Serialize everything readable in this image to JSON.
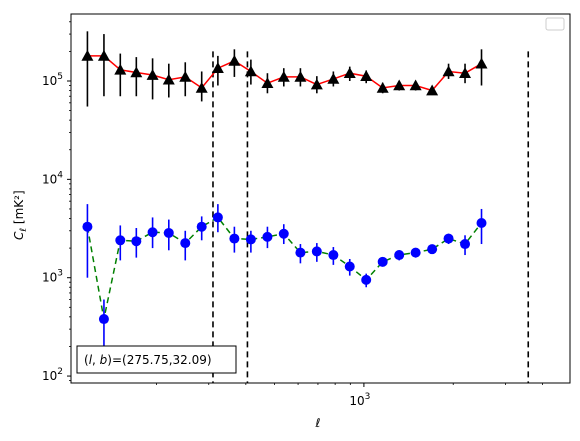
{
  "chart_data": {
    "type": "scatter",
    "title": "",
    "xlabel": "ℓ",
    "ylabel_main": "C",
    "ylabel_sub": "ℓ",
    "ylabel_unit": "[mK²]",
    "xscale": "log",
    "yscale": "log",
    "xlim": [
      103,
      4950
    ],
    "ylim": [
      85,
      480000
    ],
    "x_tick_labels": [
      {
        "label": "10",
        "sup": "3",
        "value": 1000
      }
    ],
    "y_tick_labels": [
      {
        "label": "10",
        "sup": "2",
        "value": 100
      },
      {
        "label": "10",
        "sup": "3",
        "value": 1000
      },
      {
        "label": "10",
        "sup": "4",
        "value": 10000
      },
      {
        "label": "10",
        "sup": "5",
        "value": 100000
      }
    ],
    "legend": {
      "placement": "top-right",
      "entries": []
    },
    "annotation": {
      "text": "(l, b)=(275.75,32.09)",
      "placement": "bottom-left"
    },
    "vlines": [
      {
        "x": 310
      },
      {
        "x": 405
      },
      {
        "x": 3580
      }
    ],
    "series": [
      {
        "marker": "triangle",
        "marker_color": "#000000",
        "line_color": "#ff0000",
        "line_style": "solid",
        "errorbar_color": "#000000",
        "points": [
          {
            "x": 117,
            "y": 180000,
            "lo": 55000,
            "hi": 320000
          },
          {
            "x": 133,
            "y": 180000,
            "lo": 70000,
            "hi": 300000
          },
          {
            "x": 151,
            "y": 130000,
            "lo": 70000,
            "hi": 190000
          },
          {
            "x": 171,
            "y": 122000,
            "lo": 70000,
            "hi": 175000
          },
          {
            "x": 194,
            "y": 115000,
            "lo": 65000,
            "hi": 170000
          },
          {
            "x": 220,
            "y": 103000,
            "lo": 68000,
            "hi": 150000
          },
          {
            "x": 250,
            "y": 110000,
            "lo": 70000,
            "hi": 155000
          },
          {
            "x": 284,
            "y": 85000,
            "lo": 62000,
            "hi": 125000
          },
          {
            "x": 322,
            "y": 135000,
            "lo": 90000,
            "hi": 180000
          },
          {
            "x": 366,
            "y": 160000,
            "lo": 110000,
            "hi": 210000
          },
          {
            "x": 416,
            "y": 125000,
            "lo": 92000,
            "hi": 165000
          },
          {
            "x": 473,
            "y": 95000,
            "lo": 75000,
            "hi": 120000
          },
          {
            "x": 537,
            "y": 110000,
            "lo": 88000,
            "hi": 135000
          },
          {
            "x": 611,
            "y": 110000,
            "lo": 88000,
            "hi": 135000
          },
          {
            "x": 694,
            "y": 92000,
            "lo": 75000,
            "hi": 112000
          },
          {
            "x": 789,
            "y": 105000,
            "lo": 88000,
            "hi": 125000
          },
          {
            "x": 896,
            "y": 120000,
            "lo": 100000,
            "hi": 140000
          },
          {
            "x": 1018,
            "y": 112000,
            "lo": 95000,
            "hi": 128000
          },
          {
            "x": 1157,
            "y": 85000,
            "lo": 75000,
            "hi": 96000
          },
          {
            "x": 1315,
            "y": 90000,
            "lo": 80000,
            "hi": 100000
          },
          {
            "x": 1494,
            "y": 90000,
            "lo": 80000,
            "hi": 100000
          },
          {
            "x": 1698,
            "y": 80000,
            "lo": 72000,
            "hi": 88000
          },
          {
            "x": 1929,
            "y": 125000,
            "lo": 105000,
            "hi": 150000
          },
          {
            "x": 2192,
            "y": 120000,
            "lo": 95000,
            "hi": 150000
          },
          {
            "x": 2491,
            "y": 150000,
            "lo": 90000,
            "hi": 210000
          }
        ]
      },
      {
        "marker": "circle",
        "marker_color": "#0000ff",
        "line_color": "#008000",
        "line_style": "dashed",
        "errorbar_color": "#0000ff",
        "points": [
          {
            "x": 117,
            "y": 3300,
            "lo": 1000,
            "hi": 5600
          },
          {
            "x": 133,
            "y": 380,
            "lo": 190,
            "hi": 600
          },
          {
            "x": 151,
            "y": 2400,
            "lo": 1500,
            "hi": 3400
          },
          {
            "x": 171,
            "y": 2350,
            "lo": 1600,
            "hi": 3200
          },
          {
            "x": 194,
            "y": 2900,
            "lo": 2000,
            "hi": 4100
          },
          {
            "x": 220,
            "y": 2850,
            "lo": 1900,
            "hi": 3900
          },
          {
            "x": 250,
            "y": 2250,
            "lo": 1500,
            "hi": 3000
          },
          {
            "x": 284,
            "y": 3300,
            "lo": 2400,
            "hi": 4200
          },
          {
            "x": 322,
            "y": 4100,
            "lo": 2900,
            "hi": 5600
          },
          {
            "x": 366,
            "y": 2500,
            "lo": 1800,
            "hi": 3300
          },
          {
            "x": 416,
            "y": 2450,
            "lo": 1800,
            "hi": 3000
          },
          {
            "x": 473,
            "y": 2600,
            "lo": 2000,
            "hi": 3300
          },
          {
            "x": 537,
            "y": 2800,
            "lo": 2200,
            "hi": 3500
          },
          {
            "x": 611,
            "y": 1800,
            "lo": 1400,
            "hi": 2200
          },
          {
            "x": 694,
            "y": 1850,
            "lo": 1450,
            "hi": 2250
          },
          {
            "x": 789,
            "y": 1700,
            "lo": 1350,
            "hi": 2050
          },
          {
            "x": 896,
            "y": 1300,
            "lo": 1050,
            "hi": 1550
          },
          {
            "x": 1018,
            "y": 950,
            "lo": 800,
            "hi": 1100
          },
          {
            "x": 1157,
            "y": 1450,
            "lo": 1300,
            "hi": 1600
          },
          {
            "x": 1315,
            "y": 1700,
            "lo": 1500,
            "hi": 1900
          },
          {
            "x": 1494,
            "y": 1800,
            "lo": 1600,
            "hi": 2000
          },
          {
            "x": 1698,
            "y": 1950,
            "lo": 1750,
            "hi": 2150
          },
          {
            "x": 1929,
            "y": 2500,
            "lo": 2200,
            "hi": 2800
          },
          {
            "x": 2192,
            "y": 2200,
            "lo": 1700,
            "hi": 2700
          },
          {
            "x": 2491,
            "y": 3600,
            "lo": 2200,
            "hi": 5000
          }
        ]
      }
    ]
  }
}
